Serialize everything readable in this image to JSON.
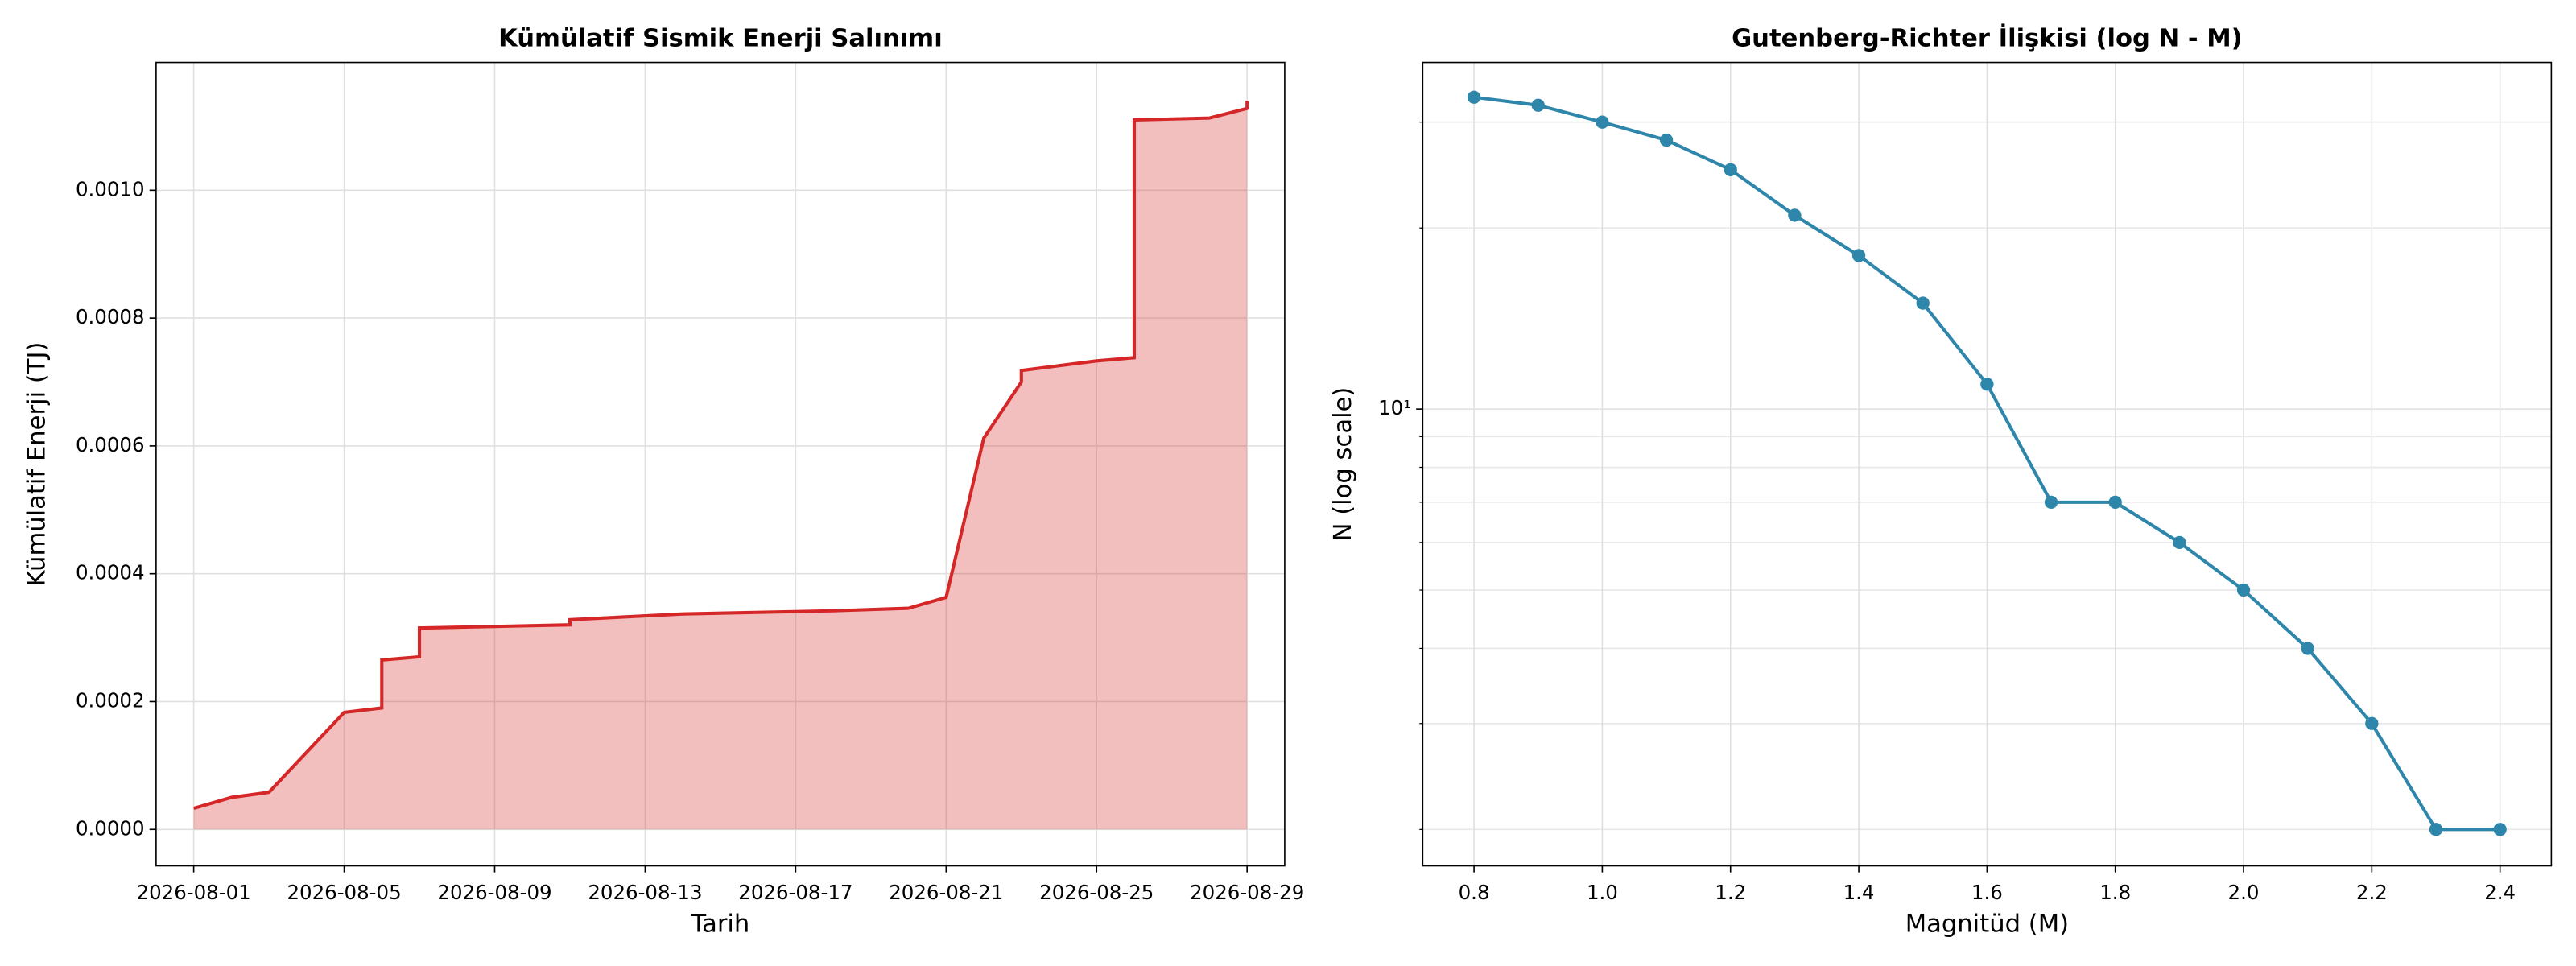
{
  "chart_data": [
    {
      "type": "area",
      "title": "Kümülatif Sismik Enerji Salınımı",
      "xlabel": "Tarih",
      "ylabel": "Kümülatif Enerji (TJ)",
      "x": [
        "2026-08-01",
        "2026-08-02",
        "2026-08-03",
        "2026-08-05",
        "2026-08-06",
        "2026-08-06",
        "2026-08-06",
        "2026-08-07",
        "2026-08-07",
        "2026-08-11",
        "2026-08-11",
        "2026-08-14",
        "2026-08-18",
        "2026-08-20",
        "2026-08-21",
        "2026-08-22",
        "2026-08-23",
        "2026-08-23",
        "2026-08-25",
        "2026-08-26",
        "2026-08-26",
        "2026-08-26",
        "2026-08-28",
        "2026-08-29",
        "2026-08-29"
      ],
      "series": [
        {
          "color": "#d62728",
          "values": [
            3.3e-05,
            5e-05,
            5.8e-05,
            0.000183,
            0.00019,
            0.000255,
            0.000265,
            0.00027,
            0.000315,
            0.00032,
            0.000328,
            0.000337,
            0.000342,
            0.000346,
            0.000363,
            0.000612,
            0.0007,
            0.000718,
            0.000733,
            0.000738,
            0.001095,
            0.00111,
            0.001113,
            0.001128,
            0.00114
          ]
        }
      ],
      "xlim": [
        "2026-07-31",
        "2026-08-30"
      ],
      "xticks": [
        "2026-08-01",
        "2026-08-05",
        "2026-08-09",
        "2026-08-13",
        "2026-08-17",
        "2026-08-21",
        "2026-08-25",
        "2026-08-29"
      ],
      "ylim": [
        -5.7e-05,
        0.0012
      ],
      "yticks": [
        {
          "value": 0,
          "label": "0.0000"
        },
        {
          "value": 0.0002,
          "label": "0.0002"
        },
        {
          "value": 0.0004,
          "label": "0.0004"
        },
        {
          "value": 0.0006,
          "label": "0.0006"
        },
        {
          "value": 0.0008,
          "label": "0.0008"
        },
        {
          "value": 0.001,
          "label": "0.0010"
        }
      ],
      "grid": true
    },
    {
      "type": "line",
      "title": "Gutenberg-Richter İlişkisi (log N - M)",
      "xlabel": "Magnitüd (M)",
      "ylabel": "N (log scale)",
      "x": [
        0.8,
        0.9,
        1.0,
        1.1,
        1.2,
        1.3,
        1.4,
        1.5,
        1.6,
        1.7,
        1.8,
        1.9,
        2.0,
        2.1,
        2.2,
        2.3,
        2.4
      ],
      "series": [
        {
          "color": "#2e86ab",
          "values": [
            33,
            32,
            30,
            28,
            25,
            21,
            18,
            15,
            11,
            7,
            7,
            6,
            5,
            4,
            3,
            2,
            2
          ]
        }
      ],
      "xlim": [
        0.72,
        2.48
      ],
      "xticks": [
        0.8,
        {
          "value": 1,
          "label": "1.0"
        },
        1.2,
        1.4,
        1.6,
        1.8,
        {
          "value": 2,
          "label": "2.0"
        },
        2.2,
        2.4
      ],
      "ylim": [
        1.74,
        37.7
      ],
      "log_y": true,
      "yticks": [
        {
          "value": 10,
          "label": "10¹"
        }
      ],
      "grid": true
    }
  ]
}
